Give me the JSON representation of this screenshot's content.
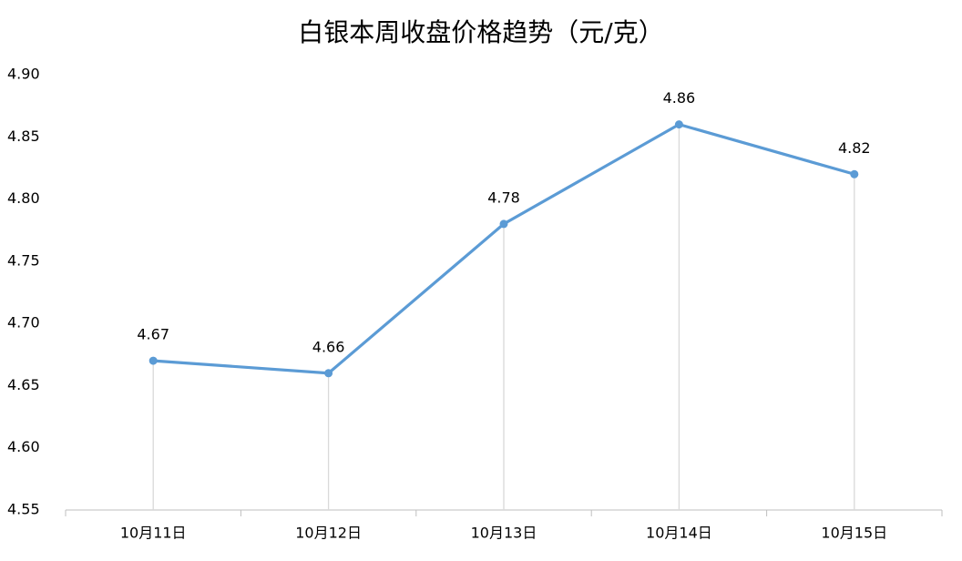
{
  "chart_data": {
    "type": "line",
    "title": "白银本周收盘价格趋势（元/克）",
    "categories": [
      "10月11日",
      "10月12日",
      "10月13日",
      "10月14日",
      "10月15日"
    ],
    "values": [
      4.67,
      4.66,
      4.78,
      4.86,
      4.82
    ],
    "color": "#5b9bd5",
    "ylim": [
      4.55,
      4.9
    ],
    "yticks": [
      4.55,
      {
        "value": 4.6,
        "label": "4.60"
      },
      4.65,
      {
        "value": 4.7,
        "label": "4.70"
      },
      4.75,
      {
        "value": 4.8,
        "label": "4.80"
      },
      4.85,
      {
        "value": 4.9,
        "label": "4.90"
      }
    ],
    "grid": false,
    "drop_lines": true,
    "data_labels": true
  }
}
